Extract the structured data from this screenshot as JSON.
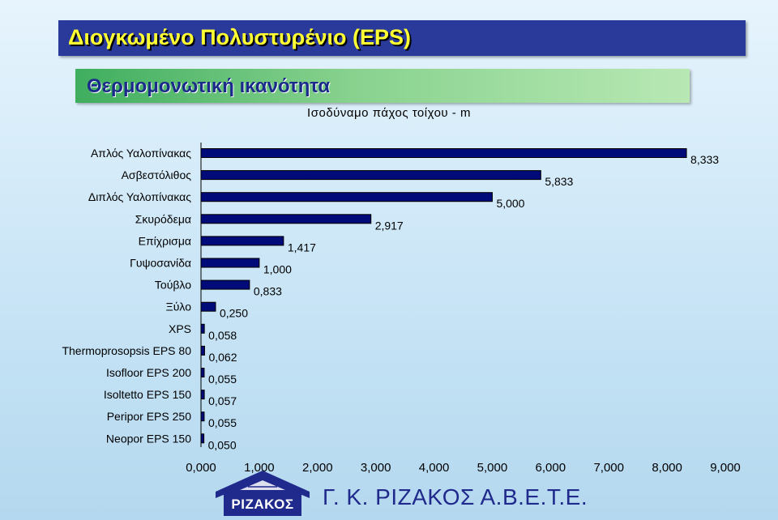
{
  "header": {
    "title": "Διογκωμένο Πολυστυρένιο (EPS)"
  },
  "subheader": {
    "title": "Θερμομονωτική ικανότητα"
  },
  "footer": {
    "company": "Γ. Κ. ΡΙΖΑΚΟΣ Α.Β.Ε.Τ.Ε.",
    "logo_text": "ΡΙΖΑΚΟΣ"
  },
  "colors": {
    "bar_fill": "#000a78",
    "header_bg": "#2a3a9a",
    "header_text": "#ffff33",
    "sub_text": "#1a2b8a"
  },
  "chart_data": {
    "type": "bar",
    "orientation": "horizontal",
    "title": "",
    "xlabel": "Ισοδύναμο πάχος τοίχου - m",
    "ylabel": "",
    "categories": [
      "Απλός Υαλοπίνακας",
      "Ασβεστόλιθος",
      "Διπλός Υαλοπίνακας",
      "Σκυρόδεμα",
      "Επίχρισμα",
      "Γυψοσανίδα",
      "Τούβλο",
      "Ξύλο",
      "XPS",
      "Thermoprosopsis EPS 80",
      "Isofloor EPS 200",
      "Isoltetto EPS 150",
      "Peripor EPS 250",
      "Neopor EPS 150"
    ],
    "values": [
      8.333,
      5.833,
      5.0,
      2.917,
      1.417,
      1.0,
      0.833,
      0.25,
      0.058,
      0.062,
      0.055,
      0.057,
      0.055,
      0.05
    ],
    "value_labels": [
      "8,333",
      "5,833",
      "5,000",
      "2,917",
      "1,417",
      "1,000",
      "0,833",
      "0,250",
      "0,058",
      "0,062",
      "0,055",
      "0,057",
      "0,055",
      "0,050"
    ],
    "xlim": [
      0,
      9
    ],
    "xticks": [
      "0,000",
      "1,000",
      "2,000",
      "3,000",
      "4,000",
      "5,000",
      "6,000",
      "7,000",
      "8,000",
      "9,000"
    ],
    "grid": false,
    "legend": "none"
  }
}
